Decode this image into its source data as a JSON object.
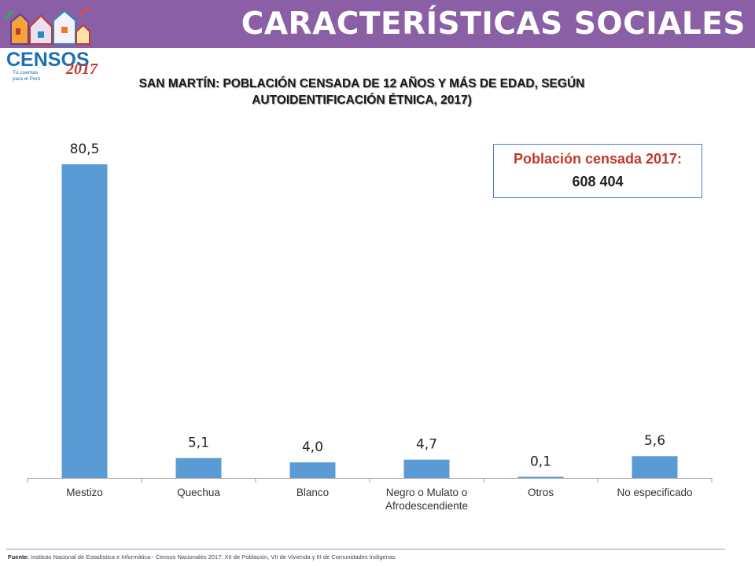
{
  "header": {
    "title": "CARACTERÍSTICAS SOCIALES"
  },
  "logo": {
    "text": "CENSOS",
    "year": "2017",
    "tagline_1": "Tú cuentas",
    "tagline_2": "para el Perú"
  },
  "chart_title": {
    "line1": "SAN MARTÍN: POBLACIÓN CENSADA DE 12 AÑOS Y MÁS DE EDAD, SEGÚN",
    "line2": "AUTOIDENTIFICACIÓN ÉTNICA, 2017)"
  },
  "population_box": {
    "label": "Población censada 2017:",
    "value": "608 404"
  },
  "colors": {
    "header": "#8b5fa6",
    "bar": "#5b9bd5",
    "box_label": "#c0392b",
    "box_border": "#4f81bd"
  },
  "chart_data": {
    "type": "bar",
    "categories": [
      "Mestizo",
      "Quechua",
      "Blanco",
      "Negro o  Mulato o Afrodescendiente",
      "Otros",
      "No especificado"
    ],
    "category_lines": [
      [
        "Mestizo"
      ],
      [
        "Quechua"
      ],
      [
        "Blanco"
      ],
      [
        "Negro o  Mulato o",
        "Afrodescendiente"
      ],
      [
        "Otros"
      ],
      [
        "No especificado"
      ]
    ],
    "values": [
      80.5,
      5.1,
      4.0,
      4.7,
      0.1,
      5.6
    ],
    "value_labels": [
      "80,5",
      "5,1",
      "4,0",
      "4,7",
      "0,1",
      "5,6"
    ],
    "ylim": [
      0,
      80.5
    ],
    "grid": false,
    "legend": "none"
  },
  "footer": {
    "source_label": "Fuente:",
    "source_text": " Instituto Nacional de Estadística e Informática - Censos Nacionales 2017: XII de Población, VII de Vivienda y III de Comunidades Indígenas"
  }
}
